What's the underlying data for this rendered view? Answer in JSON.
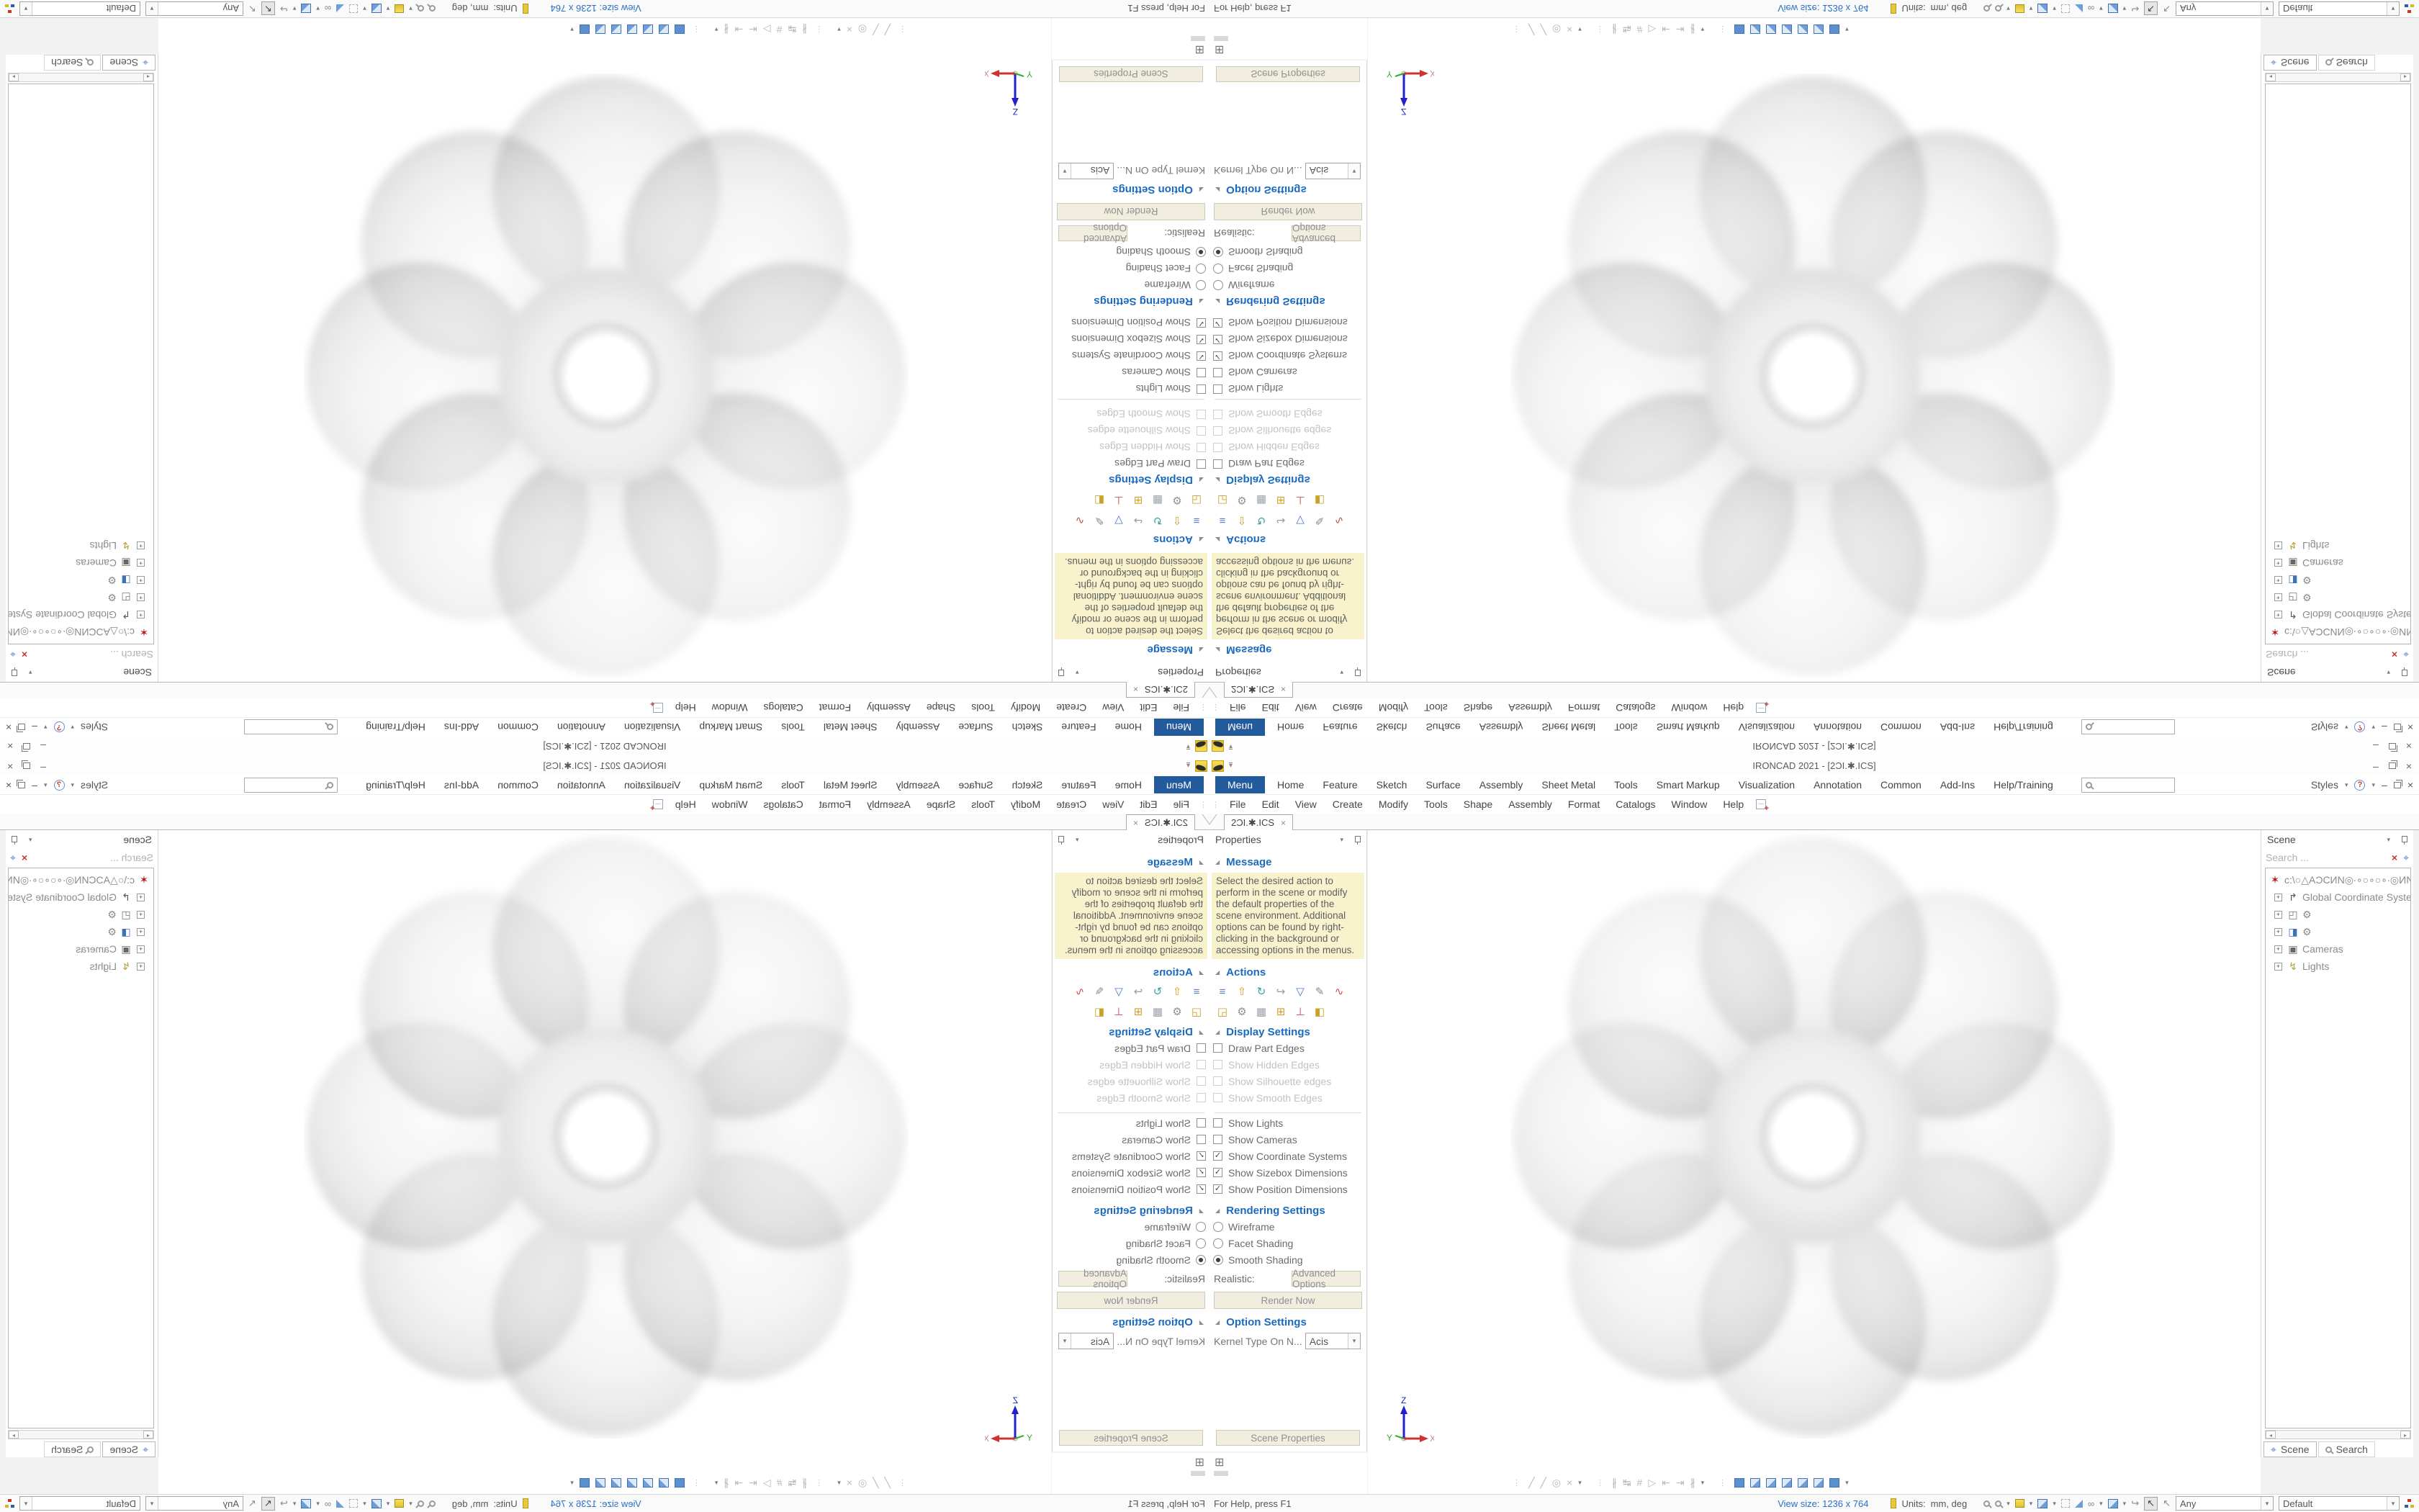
{
  "window": {
    "title": "IRONCAD 2021 - [2ƆI.✱.ICS]",
    "doc_tab": "2ƆI.✱.ICS",
    "ribbon_tabs": [
      "Menu",
      "Home",
      "Feature",
      "Sketch",
      "Surface",
      "Assembly",
      "Sheet Metal",
      "Tools",
      "Smart Markup",
      "Visualization",
      "Annotation",
      "Common",
      "Add-Ins",
      "Help/Training"
    ],
    "styles_label": "Styles",
    "menu_items": [
      "File",
      "Edit",
      "View",
      "Create",
      "Modify",
      "Tools",
      "Shape",
      "Assembly",
      "Format",
      "Catalogs",
      "Window",
      "Help"
    ]
  },
  "properties_panel": {
    "title": "Properties",
    "message_header": "Message",
    "message_text": "Select the desired action to perform in the scene or modify the default properties of the scene environment. Additional options can be found by right-clicking in the background or accessing options in the menus.",
    "actions_header": "Actions",
    "display_header": "Display Settings",
    "checkboxes": [
      "Draw Part Edges",
      "Show Hidden Edges",
      "Show Silhouette edges",
      "Show Smooth Edges",
      "Show Lights",
      "Show Cameras",
      "Show Coordinate Systems",
      "Show Sizebox Dimensions",
      "Show Position Dimensions"
    ],
    "rendering_header": "Rendering Settings",
    "radios": [
      "Wireframe",
      "Facet Shading",
      "Smooth Shading"
    ],
    "realistic_label": "Realistic:",
    "advanced_options_button": "Advanced Options",
    "render_now_button": "Render Now",
    "options_header": "Option Settings",
    "kernel_label": "Kernel Type On N...",
    "kernel_value": "Acis",
    "scene_properties_button": "Scene Properties"
  },
  "scene_panel": {
    "title": "Scene",
    "search_placeholder": "Search ...",
    "root_label": "c:\\○△AƆCИN◎∙∘○∘○∘∙◎ИN",
    "items": [
      "Global Coordinate System",
      "⚙",
      "⚙",
      "Cameras",
      "Lights"
    ],
    "tab_scene": "Scene",
    "tab_search": "Search"
  },
  "status_bar": {
    "help_text": "For Help, press F1",
    "view_size": "View size: 1236 x 764",
    "units_label": "Units:",
    "units_value": "mm, deg",
    "selection_filter": "Any",
    "config": "Default"
  },
  "triad": {
    "x": "X",
    "y": "Y",
    "z": "Z"
  },
  "colors": {
    "menu_tab_blue": "#235a9b",
    "section_header_blue": "#1a6abf",
    "message_bg": "#f8f3cd",
    "view_size_blue": "#2a6fc4",
    "model_gray": "#ededed"
  },
  "icons": {
    "caret": "▾",
    "close": "×",
    "minimize": "–",
    "check": "✓",
    "plus": "+",
    "help": "?",
    "handle": "⋮",
    "section_arrow": "◢",
    "gear": "⚙",
    "bug": "✶",
    "find": "⌖",
    "clear": "×",
    "a": [
      "≡",
      "⇧",
      "↻",
      "↪",
      "▽",
      "✎",
      "∿"
    ],
    "b": [
      "◲",
      "⚙",
      "▦",
      "⊞",
      "⊥",
      "◧"
    ],
    "s1": [
      "╱",
      "╱",
      "◎",
      "×"
    ],
    "s2": [
      "∦",
      "↹",
      "#",
      "▷",
      "⇤",
      "⇥",
      "∦"
    ],
    "glasses": "∞",
    "cursor": "↖",
    "curve": "↪",
    "gcs": "↱",
    "shape": "◰",
    "part": "◨",
    "cameras": "▣",
    "lights": "↯",
    "new_doc": "⊞",
    "scroll_left": "◂",
    "scroll_right": "▸"
  }
}
